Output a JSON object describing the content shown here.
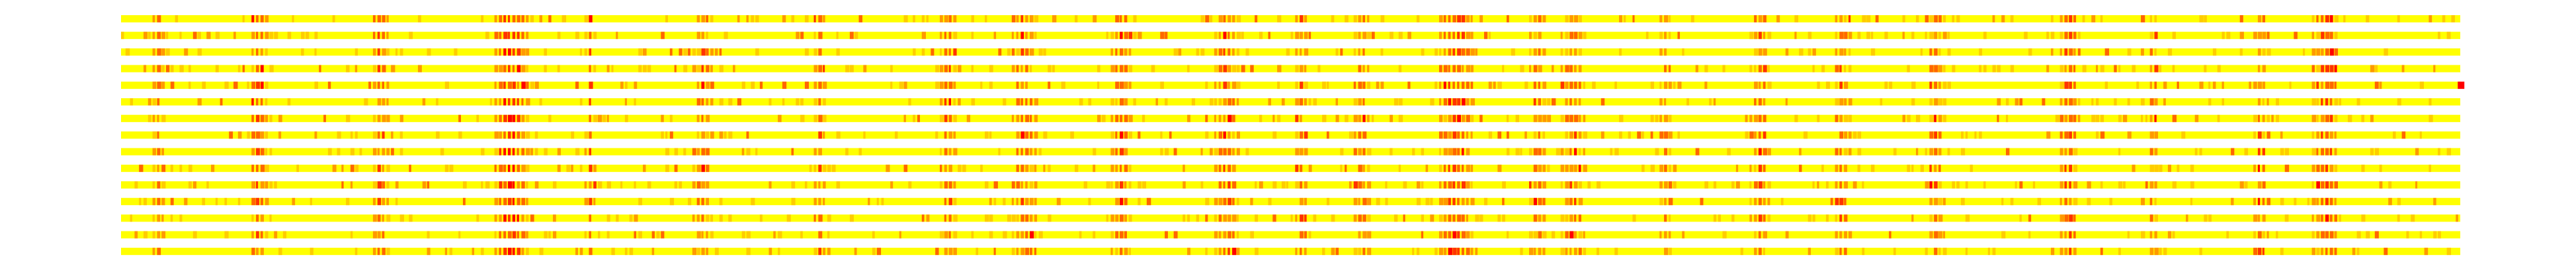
{
  "chart_data": {
    "type": "heatmap",
    "title": "",
    "xlabel": "",
    "ylabel": "",
    "rows": 15,
    "columns": 520,
    "axes_visible": false,
    "grid": false,
    "legend": "none",
    "colormap": [
      "#ffff00",
      "#ffcc00",
      "#ff9900",
      "#ff6600",
      "#ff3300",
      "#ff0000"
    ],
    "value_range": [
      0,
      1
    ],
    "column_profile": {
      "baseline": 0.08,
      "hot_bands": [
        {
          "center": 0.015,
          "width": 0.003,
          "intensity": 0.55
        },
        {
          "center": 0.058,
          "width": 0.004,
          "intensity": 0.7
        },
        {
          "center": 0.11,
          "width": 0.004,
          "intensity": 0.6
        },
        {
          "center": 0.166,
          "width": 0.008,
          "intensity": 0.85
        },
        {
          "center": 0.2,
          "width": 0.002,
          "intensity": 0.6
        },
        {
          "center": 0.248,
          "width": 0.004,
          "intensity": 0.6
        },
        {
          "center": 0.298,
          "width": 0.003,
          "intensity": 0.55
        },
        {
          "center": 0.353,
          "width": 0.004,
          "intensity": 0.65
        },
        {
          "center": 0.385,
          "width": 0.006,
          "intensity": 0.6
        },
        {
          "center": 0.427,
          "width": 0.004,
          "intensity": 0.7
        },
        {
          "center": 0.472,
          "width": 0.006,
          "intensity": 0.65
        },
        {
          "center": 0.504,
          "width": 0.003,
          "intensity": 0.55
        },
        {
          "center": 0.53,
          "width": 0.004,
          "intensity": 0.6
        },
        {
          "center": 0.57,
          "width": 0.008,
          "intensity": 0.75
        },
        {
          "center": 0.605,
          "width": 0.004,
          "intensity": 0.55
        },
        {
          "center": 0.62,
          "width": 0.006,
          "intensity": 0.6
        },
        {
          "center": 0.66,
          "width": 0.003,
          "intensity": 0.55
        },
        {
          "center": 0.7,
          "width": 0.004,
          "intensity": 0.6
        },
        {
          "center": 0.735,
          "width": 0.004,
          "intensity": 0.55
        },
        {
          "center": 0.775,
          "width": 0.004,
          "intensity": 0.55
        },
        {
          "center": 0.832,
          "width": 0.004,
          "intensity": 0.7
        },
        {
          "center": 0.868,
          "width": 0.002,
          "intensity": 0.6
        },
        {
          "center": 0.914,
          "width": 0.003,
          "intensity": 0.6
        },
        {
          "center": 0.942,
          "width": 0.006,
          "intensity": 0.7
        }
      ]
    },
    "highlight_cells": [
      {
        "row": 4,
        "column": 519,
        "value": 1.0
      }
    ]
  }
}
